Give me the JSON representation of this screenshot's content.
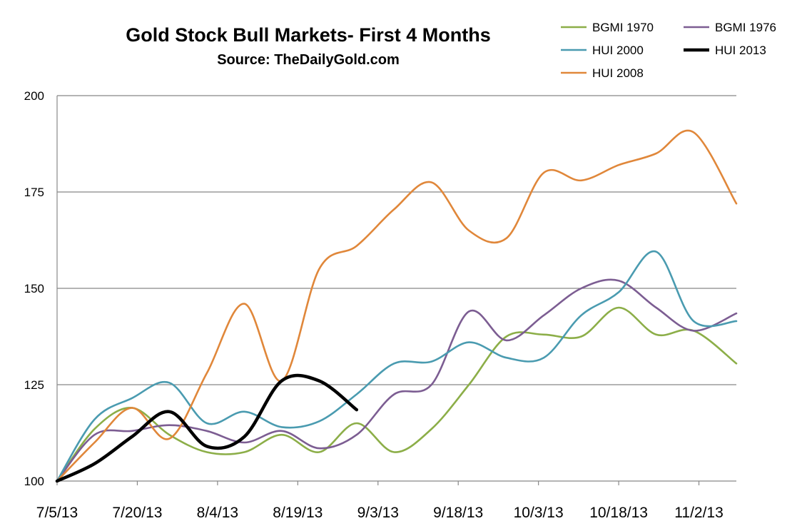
{
  "chart_data": {
    "type": "line",
    "title": "Gold Stock Bull Markets- First 4 Months",
    "subtitle": "Source: TheDailyGold.com",
    "xlabel": "",
    "ylabel": "",
    "ylim": [
      100,
      200
    ],
    "yticks": [
      "100",
      "125",
      "150",
      "175",
      "200"
    ],
    "xlim": [
      "7/5/13",
      "11/9/13"
    ],
    "xticks": [
      "7/5/13",
      "7/20/13",
      "8/4/13",
      "8/19/13",
      "9/3/13",
      "9/18/13",
      "10/3/13",
      "10/18/13",
      "11/2/13"
    ],
    "grid": "horizontal",
    "legend_position": "top-right",
    "series": [
      {
        "name": "BGMI 1970",
        "color": "#8cae48",
        "x": [
          "7/5/13",
          "7/12/13",
          "7/19/13",
          "7/26/13",
          "8/2/13",
          "8/9/13",
          "8/16/13",
          "8/23/13",
          "8/30/13",
          "9/6/13",
          "9/13/13",
          "9/20/13",
          "9/27/13",
          "10/4/13",
          "10/11/13",
          "10/18/13",
          "10/25/13",
          "11/1/13",
          "11/9/13"
        ],
        "values": [
          100,
          113.5,
          119,
          112,
          107.5,
          107.5,
          112,
          107.5,
          115,
          107.5,
          113.5,
          125,
          137.5,
          138,
          137.5,
          145,
          138,
          139,
          130.5
        ]
      },
      {
        "name": "BGMI 1976",
        "color": "#7c5d92",
        "x": [
          "7/5/13",
          "7/12/13",
          "7/19/13",
          "7/26/13",
          "8/2/13",
          "8/9/13",
          "8/16/13",
          "8/23/13",
          "8/30/13",
          "9/6/13",
          "9/13/13",
          "9/20/13",
          "9/27/13",
          "10/4/13",
          "10/11/13",
          "10/18/13",
          "10/25/13",
          "11/1/13",
          "11/9/13"
        ],
        "values": [
          100,
          112,
          113,
          114.5,
          113,
          110,
          113,
          108.5,
          112,
          122.5,
          125,
          144,
          136.5,
          143,
          150,
          152,
          145,
          139,
          143.5
        ]
      },
      {
        "name": "HUI 2000",
        "color": "#4a9bb0",
        "x": [
          "7/5/13",
          "7/12/13",
          "7/19/13",
          "7/26/13",
          "8/2/13",
          "8/9/13",
          "8/16/13",
          "8/23/13",
          "8/30/13",
          "9/6/13",
          "9/13/13",
          "9/20/13",
          "9/27/13",
          "10/4/13",
          "10/11/13",
          "10/18/13",
          "10/25/13",
          "11/1/13",
          "11/9/13"
        ],
        "values": [
          100,
          116,
          121.5,
          125.5,
          115,
          118,
          114,
          115.5,
          122.5,
          130.5,
          131,
          136,
          132,
          132,
          143,
          149,
          159.5,
          141.5,
          141.5
        ]
      },
      {
        "name": "HUI 2013",
        "color": "#000000",
        "x": [
          "7/5/13",
          "7/12/13",
          "7/19/13",
          "7/26/13",
          "8/2/13",
          "8/9/13",
          "8/16/13",
          "8/23/13",
          "8/30/13"
        ],
        "values": [
          100,
          104.5,
          111.5,
          118,
          109,
          111.5,
          126,
          126,
          118.5
        ]
      },
      {
        "name": "HUI 2008",
        "color": "#e0873a",
        "x": [
          "7/5/13",
          "7/12/13",
          "7/19/13",
          "7/26/13",
          "8/2/13",
          "8/9/13",
          "8/16/13",
          "8/23/13",
          "8/30/13",
          "9/6/13",
          "9/13/13",
          "9/20/13",
          "9/27/13",
          "10/4/13",
          "10/11/13",
          "10/18/13",
          "10/25/13",
          "11/1/13",
          "11/9/13"
        ],
        "values": [
          100,
          110,
          119,
          111,
          128,
          146,
          126,
          155,
          161,
          170.5,
          177.5,
          165,
          163,
          180,
          178,
          182,
          185,
          190.5,
          172
        ]
      }
    ]
  }
}
